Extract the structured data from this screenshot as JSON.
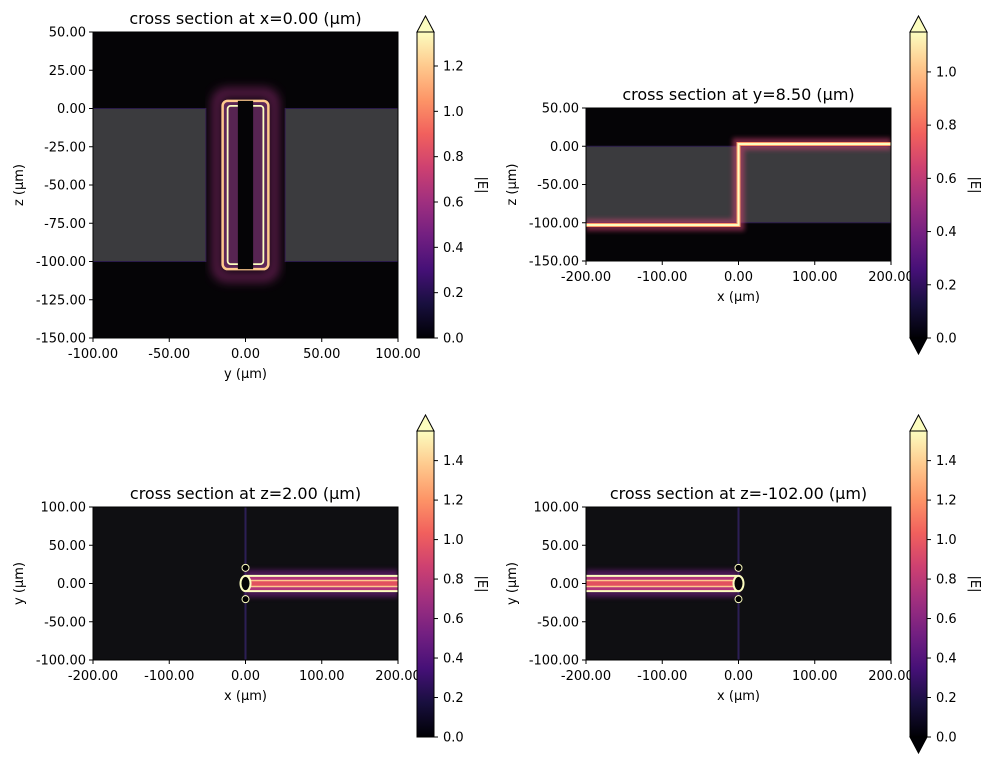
{
  "figure": {
    "colors": {
      "background": "#ffffff",
      "slab": "#3b3b3e",
      "void": "#050406",
      "dark_field": "#0f0f12",
      "colormap": [
        "#000004",
        "#180f3e",
        "#451077",
        "#721f81",
        "#9f2f7f",
        "#cd4071",
        "#f1605d",
        "#fd9567",
        "#fec98d",
        "#fcfdbf"
      ]
    }
  },
  "chart_data": [
    {
      "type": "heatmap",
      "title": "cross section at x=0.00 (μm)",
      "xlabel": "y (μm)",
      "ylabel": "z (μm)",
      "xlim": [
        -100,
        100
      ],
      "ylim": [
        -150,
        50
      ],
      "xticks": [
        "-100.00",
        "-50.00",
        "0.00",
        "50.00",
        "100.00"
      ],
      "yticks": [
        "-150.00",
        "-125.00",
        "-100.00",
        "-75.00",
        "-50.00",
        "-25.00",
        "0.00",
        "25.00",
        "50.00"
      ],
      "slabs": [
        {
          "x": [
            -100,
            -26
          ],
          "y": [
            -100,
            0
          ]
        },
        {
          "x": [
            26,
            100
          ],
          "y": [
            -100,
            0
          ]
        }
      ],
      "voids": [
        {
          "x": [
            -5,
            5
          ],
          "y": [
            -105,
            5
          ]
        }
      ],
      "rings": [
        {
          "x": [
            -15,
            15
          ],
          "y": [
            -105,
            5
          ],
          "radius": 4
        }
      ],
      "colorbar": {
        "label": "|E|",
        "range": [
          0,
          1.35
        ],
        "ticks": [
          "0.0",
          "0.2",
          "0.4",
          "0.6",
          "0.8",
          "1.0",
          "1.2"
        ],
        "extend": "max"
      }
    },
    {
      "type": "heatmap",
      "title": "cross section at y=8.50 (μm)",
      "xlabel": "x (μm)",
      "ylabel": "z (μm)",
      "xlim": [
        -200,
        200
      ],
      "ylim": [
        -150,
        50
      ],
      "xticks": [
        "-200.00",
        "-100.00",
        "0.00",
        "100.00",
        "200.00"
      ],
      "yticks": [
        "-150.00",
        "-100.00",
        "-50.00",
        "0.00",
        "50.00"
      ],
      "slabs": [
        {
          "x": [
            -200,
            200
          ],
          "y": [
            -100,
            0
          ]
        }
      ],
      "lines": [
        {
          "points": [
            [
              -200,
              -103
            ],
            [
              0,
              -103
            ],
            [
              0,
              3
            ],
            [
              200,
              3
            ]
          ]
        }
      ],
      "colorbar": {
        "label": "|E|",
        "range": [
          0,
          1.15
        ],
        "ticks": [
          "0.0",
          "0.2",
          "0.4",
          "0.6",
          "0.8",
          "1.0"
        ],
        "extend": "both"
      }
    },
    {
      "type": "heatmap",
      "title": "cross section at z=2.00 (μm)",
      "xlabel": "x (μm)",
      "ylabel": "y (μm)",
      "xlim": [
        -200,
        200
      ],
      "ylim": [
        -100,
        100
      ],
      "xticks": [
        "-200.00",
        "-100.00",
        "0.00",
        "100.00",
        "200.00"
      ],
      "yticks": [
        "-100.00",
        "-50.00",
        "0.00",
        "50.00",
        "100.00"
      ],
      "guides": [
        [
          0,
          -100,
          0,
          100
        ]
      ],
      "waveguide": {
        "x": [
          0,
          200
        ],
        "y_outer": 10,
        "y_inner": 4,
        "end": "left"
      },
      "colorbar": {
        "label": "|E|",
        "range": [
          0,
          1.55
        ],
        "ticks": [
          "0.0",
          "0.2",
          "0.4",
          "0.6",
          "0.8",
          "1.0",
          "1.2",
          "1.4"
        ],
        "extend": "max"
      }
    },
    {
      "type": "heatmap",
      "title": "cross section at z=-102.00 (μm)",
      "xlabel": "x (μm)",
      "ylabel": "y (μm)",
      "xlim": [
        -200,
        200
      ],
      "ylim": [
        -100,
        100
      ],
      "xticks": [
        "-200.00",
        "-100.00",
        "0.00",
        "100.00",
        "200.00"
      ],
      "yticks": [
        "-100.00",
        "-50.00",
        "0.00",
        "50.00",
        "100.00"
      ],
      "guides": [
        [
          0,
          -100,
          0,
          100
        ]
      ],
      "waveguide": {
        "x": [
          -200,
          0
        ],
        "y_outer": 10,
        "y_inner": 4,
        "end": "right"
      },
      "colorbar": {
        "label": "|E|",
        "range": [
          0,
          1.55
        ],
        "ticks": [
          "0.0",
          "0.2",
          "0.4",
          "0.6",
          "0.8",
          "1.0",
          "1.2",
          "1.4"
        ],
        "extend": "both"
      }
    }
  ]
}
